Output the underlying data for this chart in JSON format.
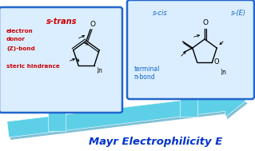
{
  "bg_color": "#ffffff",
  "arrow_color": "#5dd0e8",
  "arrow_dark_color": "#2899bb",
  "box_bg": "#dbeeff",
  "box_edge_color": "#2266cc",
  "red_text": "#cc0000",
  "blue_text": "#1166cc",
  "bold_blue": "#0033cc",
  "label_bottom": "Mayr Electrophilicity E",
  "box1_title": "s-trans",
  "box2_title_left": "s-cis",
  "box2_title_right": "s-(E)"
}
